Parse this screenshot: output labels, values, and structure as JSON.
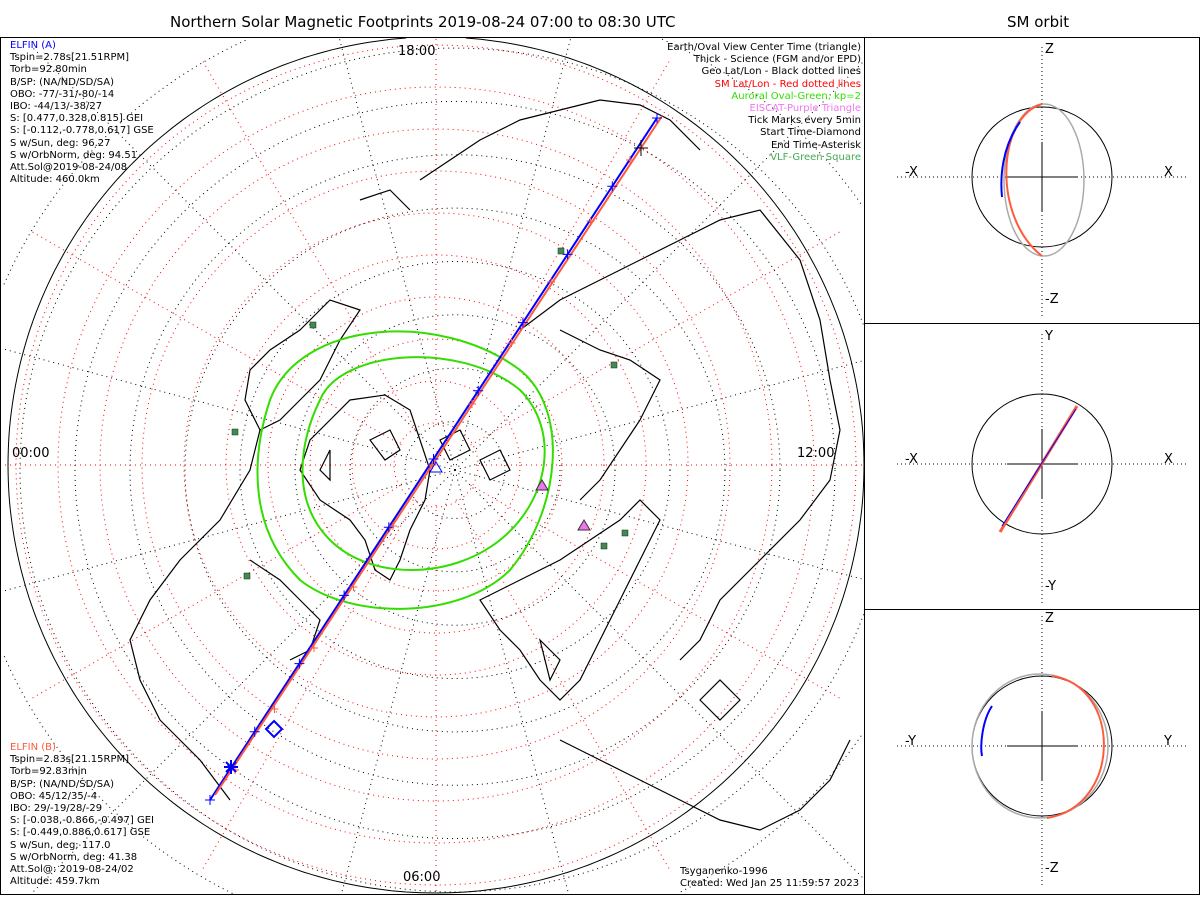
{
  "title": "Northern Solar Magnetic Footprints 2019-08-24 07:00 to 08:30 UTC",
  "orbit_title": "SM orbit",
  "time_labels": {
    "top": "18:00",
    "left": "00:00",
    "right": "12:00",
    "bottom": "06:00"
  },
  "elfin_a": {
    "name": "ELFIN (A)",
    "color": "#0000ff",
    "lines": [
      "Tspin=2.78s[21.51RPM]",
      "Torb=92.80min",
      "B/SP: (NA/ND/SD/SA)",
      "OBO: -77/-31/-80/-14",
      "IBO: -44/13/-38/27",
      "S: [0.477,0.328,0.815] GEI",
      "S: [-0.112,-0.778,0.617] GSE",
      "S w/Sun, deg: 96.27",
      "S w/OrbNorm, deg: 94.51",
      "Att.Sol@2019-08-24/08",
      "Altitude: 460.0km"
    ]
  },
  "elfin_b": {
    "name": "ELFIN (B)",
    "color": "#ff5a3c",
    "lines": [
      "Tspin=2.83s[21.15RPM]",
      "Torb=92.83min",
      "B/SP: (NA/ND/SD/SA)",
      "OBO: 45/12/35/-4",
      "IBO: 29/-19/28/-29",
      "S: [-0.038,-0.866,-0.497] GEI",
      "S: [-0.449,0.886,0.617] GSE",
      "S w/Sun, deg: 117.0",
      "S w/OrbNorm, deg: 41.38",
      "Att.Sol@: 2019-08-24/02",
      "Altitude: 459.7km"
    ]
  },
  "legend": [
    {
      "text": "Earth/Oval View Center Time (triangle)",
      "color": "#000000"
    },
    {
      "text": "Thick - Science (FGM and/or EPD)",
      "color": "#000000"
    },
    {
      "text": "Geo Lat/Lon - Black dotted lines",
      "color": "#000000"
    },
    {
      "text": "SM Lat/Lon - Red dotted lines",
      "color": "#ff0000"
    },
    {
      "text": "Auroral Oval-Green, kp=2",
      "color": "#33dd00"
    },
    {
      "text": "EISCAT-Purple Triangle",
      "color": "#ee77ee"
    },
    {
      "text": "Tick Marks every 5min",
      "color": "#000000"
    },
    {
      "text": "Start Time-Diamond",
      "color": "#000000"
    },
    {
      "text": "End Time-Asterisk",
      "color": "#000000"
    },
    {
      "text": "VLF-Green Square",
      "color": "#44aa55"
    }
  ],
  "footer": {
    "model": "Tsyganenko-1996",
    "created": "Created: Wed Jan 25 11:59:57 2023"
  },
  "panels": [
    {
      "top": "Z",
      "bottom": "-Z",
      "left": "-X",
      "right": "X"
    },
    {
      "top": "Y",
      "bottom": "-Y",
      "left": "-X",
      "right": "X"
    },
    {
      "top": "Z",
      "bottom": "-Z",
      "left": "-Y",
      "right": "Y"
    }
  ]
}
